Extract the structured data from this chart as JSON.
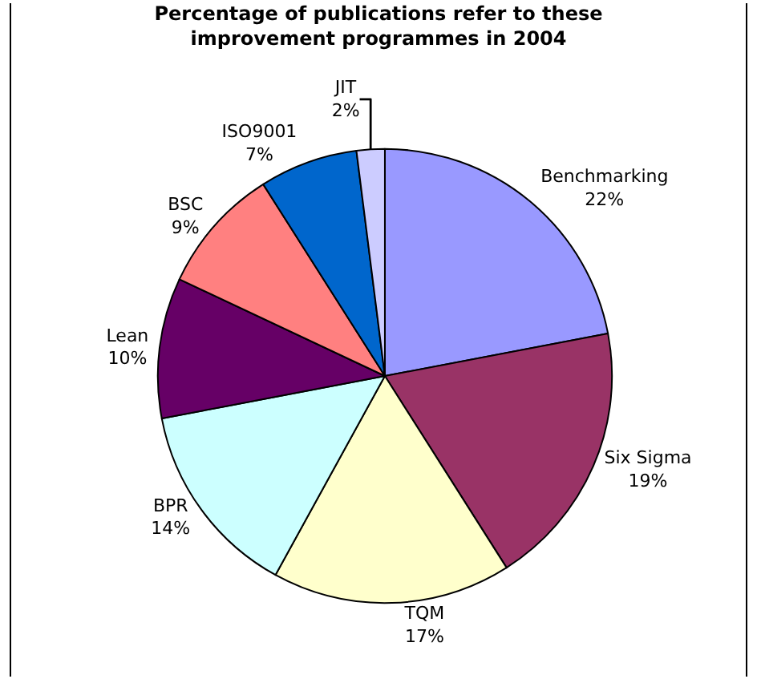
{
  "chart_data": {
    "type": "pie",
    "title": "Percentage of publications refer to these improvement programmes in 2004",
    "categories": [
      "Benchmarking",
      "Six Sigma",
      "TQM",
      "BPR",
      "Lean",
      "BSC",
      "ISO9001",
      "JIT"
    ],
    "values": [
      22,
      19,
      17,
      14,
      10,
      9,
      7,
      2
    ],
    "value_labels": [
      "22%",
      "19%",
      "17%",
      "14%",
      "10%",
      "9%",
      "7%",
      "2%"
    ],
    "colors": [
      "#9999ff",
      "#993366",
      "#ffffcc",
      "#ccffff",
      "#660066",
      "#ff8080",
      "#0066cc",
      "#ccccff"
    ],
    "legend": false
  }
}
